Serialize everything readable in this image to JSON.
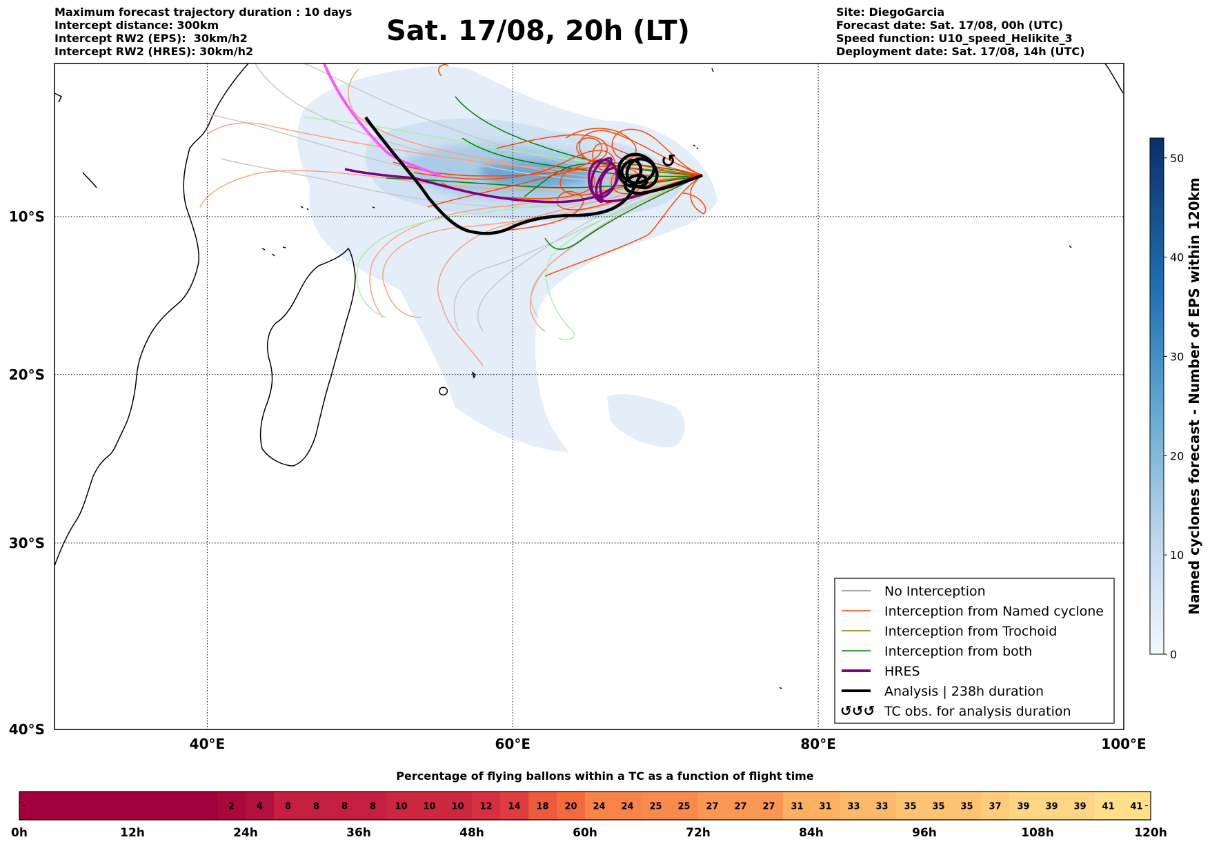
{
  "header_left": [
    "Maximum forecast trajectory duration : 10 days",
    "Intercept distance: 300km",
    "Intercept RW2 (EPS):  30km/h2",
    "Intercept RW2 (HRES): 30km/h2"
  ],
  "header_right": [
    "Site: DiegoGarcia",
    "Forecast date: Sat. 17/08, 00h (UTC)",
    "Speed function: U10_speed_Helikite_3",
    "Deployment date: Sat. 17/08, 14h (UTC)"
  ],
  "title": "Sat. 17/08, 20h (LT)",
  "map": {
    "lon_range": [
      30,
      100
    ],
    "lat_range": [
      -40,
      0
    ],
    "lon_ticks": [
      {
        "value": 40,
        "label": "40°E"
      },
      {
        "value": 60,
        "label": "60°E"
      },
      {
        "value": 80,
        "label": "80°E"
      },
      {
        "value": 100,
        "label": "100°E"
      }
    ],
    "lat_ticks": [
      {
        "value": -10,
        "label": "10°S"
      },
      {
        "value": -20,
        "label": "20°S"
      },
      {
        "value": -30,
        "label": "30°S"
      },
      {
        "value": -40,
        "label": "40°S"
      }
    ],
    "site": {
      "name": "DiegoGarcia",
      "lon": 72.4,
      "lat": -7.3
    }
  },
  "legend": {
    "items": [
      {
        "label": "No Interception",
        "color": "#888888",
        "style": "thin"
      },
      {
        "label": "Interception from Named cyclone",
        "color": "#ff4500",
        "style": "thin"
      },
      {
        "label": "Interception from Trochoid",
        "color": "#808000",
        "style": "thin"
      },
      {
        "label": "Interception from both",
        "color": "#008000",
        "style": "thin"
      },
      {
        "label": "HRES",
        "color": "#800080",
        "style": "thick"
      },
      {
        "label": "Analysis | 238h duration",
        "color": "#000000",
        "style": "thick"
      },
      {
        "label": "TC obs. for analysis duration",
        "color": "#000000",
        "style": "symbol"
      }
    ]
  },
  "colorbar": {
    "title": "Named cyclones forecast - Number of EPS within 120km",
    "ticks": [
      "0",
      "10",
      "20",
      "30",
      "40",
      "50"
    ],
    "min": 0,
    "max": 52
  },
  "flight_bar": {
    "title": "Percentage of flying ballons within a TC as a function of flight time",
    "values": [
      "",
      "",
      "",
      "",
      "",
      "",
      "",
      "2",
      "4",
      "8",
      "8",
      "8",
      "8",
      "10",
      "10",
      "10",
      "12",
      "14",
      "18",
      "20",
      "24",
      "24",
      "25",
      "25",
      "27",
      "27",
      "27",
      "31",
      "31",
      "33",
      "33",
      "35",
      "35",
      "35",
      "37",
      "39",
      "39",
      "39",
      "41",
      "41"
    ],
    "time_ticks": [
      "0h",
      "12h",
      "24h",
      "36h",
      "48h",
      "60h",
      "72h",
      "84h",
      "96h",
      "108h",
      "120h"
    ]
  }
}
